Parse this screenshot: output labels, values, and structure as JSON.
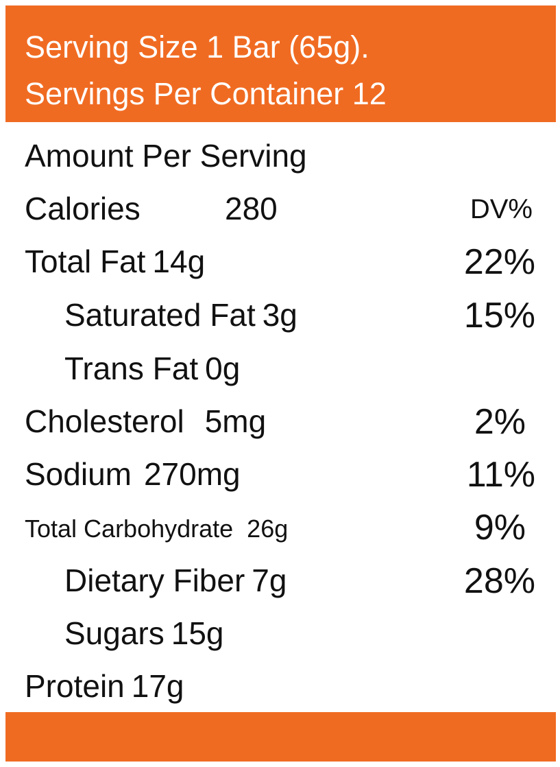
{
  "header": {
    "line1": "Serving Size 1 Bar (65g).",
    "line2": "Servings Per Container 12"
  },
  "amount_heading": "Amount Per Serving",
  "calories": {
    "label": "Calories",
    "value": "280",
    "dv_heading": "DV%"
  },
  "nutrients": [
    {
      "label": "Total Fat",
      "amount": "14g",
      "dv": "22%"
    },
    {
      "label": "Saturated Fat",
      "amount": "3g",
      "dv": "15%"
    },
    {
      "label": "Trans Fat",
      "amount": "0g",
      "dv": ""
    },
    {
      "label": "Cholesterol",
      "amount": "5mg",
      "dv": "2%"
    },
    {
      "label": "Sodium",
      "amount": "270mg",
      "dv": "11%"
    },
    {
      "label": "Total Carbohydrate",
      "amount": "26g",
      "dv": "9%"
    },
    {
      "label": "Dietary Fiber",
      "amount": "7g",
      "dv": "28%"
    },
    {
      "label": "Sugars",
      "amount": "15g",
      "dv": ""
    },
    {
      "label": "Protein",
      "amount": "17g",
      "dv": ""
    }
  ],
  "colors": {
    "accent": "#f06b22",
    "text": "#111111",
    "header_text": "#ffffff"
  }
}
